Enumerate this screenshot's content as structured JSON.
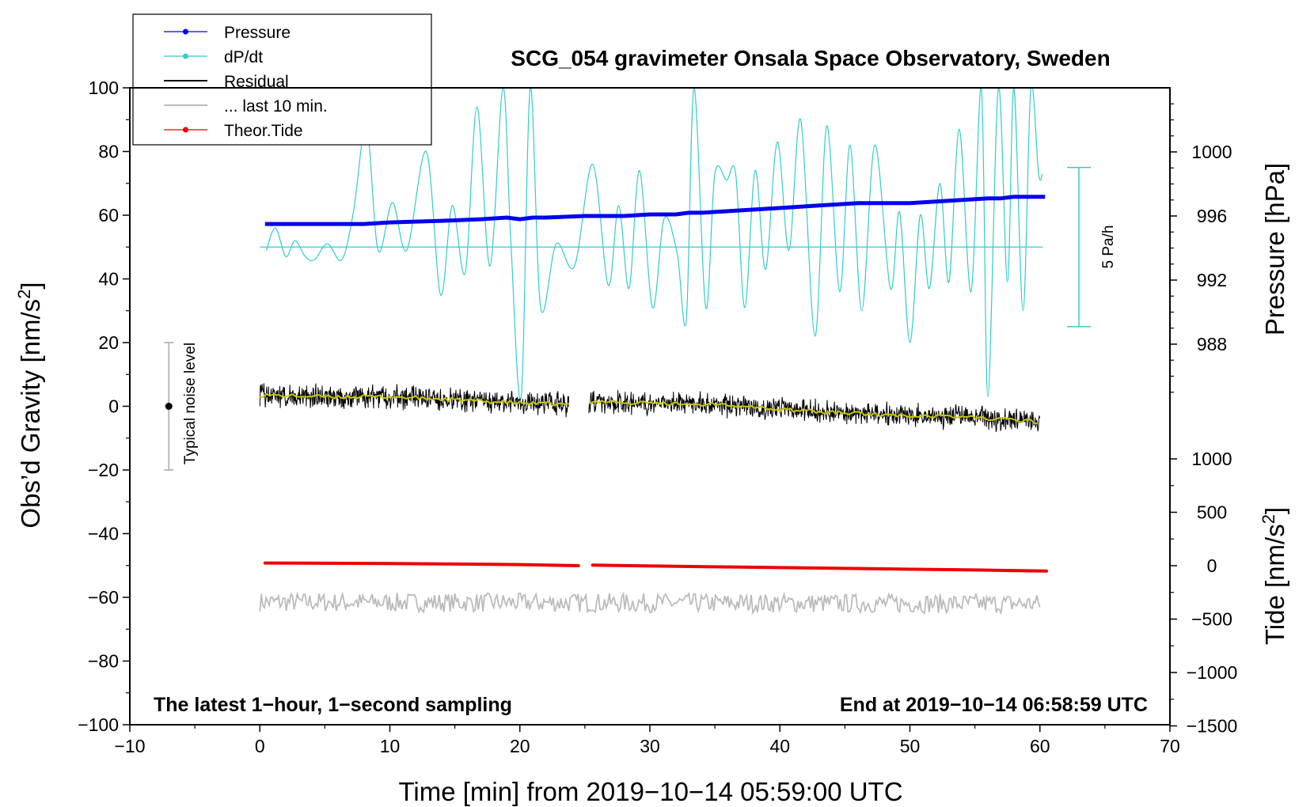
{
  "chart_data": {
    "type": "line",
    "title": "SCG_054 gravimeter Onsala Space Observatory, Sweden",
    "xlabel": "Time [min] from 2019−10−14 05:59:00 UTC",
    "ylabel_left": "Obs’d Gravity [nm/s",
    "ylabel_left_sup": "2",
    "ylabel_left_end": "]",
    "ylabel_right_top": "Pressure [hPa]",
    "ylabel_right_bottom": "Tide [nm/s",
    "ylabel_right_bottom_sup": "2",
    "ylabel_right_bottom_end": "]",
    "xlim": [
      -10,
      70
    ],
    "ylim": [
      -100,
      100
    ],
    "pressure_ylim": [
      984,
      1004
    ],
    "tide_ylim": [
      -1500,
      1500
    ],
    "x_ticks": [
      {
        "v": -10,
        "label": "−10"
      },
      {
        "v": 0,
        "label": "0"
      },
      {
        "v": 10,
        "label": "10"
      },
      {
        "v": 20,
        "label": "20"
      },
      {
        "v": 30,
        "label": "30"
      },
      {
        "v": 40,
        "label": "40"
      },
      {
        "v": 50,
        "label": "50"
      },
      {
        "v": 60,
        "label": "60"
      },
      {
        "v": 70,
        "label": "70"
      }
    ],
    "y_ticks_left": [
      {
        "v": 100,
        "label": "100"
      },
      {
        "v": 80,
        "label": "80"
      },
      {
        "v": 60,
        "label": "60"
      },
      {
        "v": 40,
        "label": "40"
      },
      {
        "v": 20,
        "label": "20"
      },
      {
        "v": 0,
        "label": "0"
      },
      {
        "v": -20,
        "label": "−20"
      },
      {
        "v": -40,
        "label": "−40"
      },
      {
        "v": -60,
        "label": "−60"
      },
      {
        "v": -80,
        "label": "−80"
      },
      {
        "v": -100,
        "label": "−100"
      }
    ],
    "y_ticks_pressure": [
      {
        "v": 1000,
        "label": "1000"
      },
      {
        "v": 996,
        "label": "996"
      },
      {
        "v": 992,
        "label": "992"
      },
      {
        "v": 988,
        "label": "988"
      }
    ],
    "y_ticks_tide": [
      {
        "v": 1000,
        "label": "1000"
      },
      {
        "v": 500,
        "label": "500"
      },
      {
        "v": 0,
        "label": "0"
      },
      {
        "v": -500,
        "label": "−500"
      },
      {
        "v": -1000,
        "label": "−1000"
      },
      {
        "v": -1500,
        "label": "−1500"
      }
    ],
    "legend": [
      {
        "label": "Pressure",
        "color": "#0000ee",
        "marker": true
      },
      {
        "label": "dP/dt",
        "color": "#33cccc",
        "marker": true
      },
      {
        "label": "Residual",
        "color": "#000000",
        "marker": false
      },
      {
        "label": "... last 10 min.",
        "color": "#bbbbbb",
        "marker": false
      },
      {
        "label": "Theor.Tide",
        "color": "#ee0000",
        "marker": true
      }
    ],
    "annotations": {
      "bottom_left": "The latest 1−hour, 1−second sampling",
      "bottom_right": "End at 2019−10−14 06:58:59 UTC",
      "noise_label": "Typical noise level",
      "noise_bar": {
        "x": -7,
        "center": 0,
        "half_range": 20
      },
      "rate_label": "5 Pa/h",
      "rate_bar": {
        "x": 63,
        "top": 75,
        "bottom": 25
      }
    },
    "series": [
      {
        "name": "Pressure",
        "color": "#0000ee",
        "axis": "pressure",
        "x": [
          0.4,
          4,
          8,
          10,
          14,
          17,
          19,
          20,
          21,
          22,
          25,
          28,
          30,
          32,
          33,
          34,
          36,
          38,
          40,
          42,
          44,
          46,
          48,
          50,
          52,
          54,
          56,
          57,
          58,
          59,
          60.4
        ],
        "values": [
          995.5,
          995.5,
          995.5,
          995.6,
          995.7,
          995.8,
          995.9,
          995.8,
          995.9,
          995.9,
          996.0,
          996.0,
          996.1,
          996.1,
          996.2,
          996.2,
          996.3,
          996.4,
          996.5,
          996.6,
          996.7,
          996.8,
          996.8,
          996.8,
          996.9,
          997.0,
          997.1,
          997.1,
          997.2,
          997.2,
          997.2
        ]
      },
      {
        "name": "dP/dt",
        "color": "#33cccc",
        "axis": "left",
        "baseline": 50,
        "x": [
          0.5,
          1.2,
          2.0,
          2.7,
          3.5,
          4.2,
          5.2,
          6.3,
          7.2,
          8.2,
          9.1,
          10.2,
          11.3,
          12.8,
          13.9,
          14.8,
          15.8,
          16.7,
          17.7,
          18.7,
          19.3,
          20.1,
          20.8,
          21.6,
          22.8,
          24.2,
          25.6,
          26.8,
          27.6,
          28.4,
          29.2,
          30.2,
          31.1,
          32.1,
          32.8,
          33.4,
          34.3,
          35.0,
          35.9,
          36.6,
          37.3,
          38.1,
          38.9,
          39.8,
          40.7,
          41.6,
          42.7,
          43.6,
          44.6,
          45.4,
          46.3,
          47.3,
          48.5,
          49.2,
          50.0,
          50.8,
          51.5,
          52.3,
          53.0,
          53.8,
          54.7,
          55.5,
          56.0,
          56.8,
          57.5,
          58.0,
          58.7,
          59.3,
          59.9,
          60.2
        ],
        "values": [
          49,
          56,
          47,
          52,
          47,
          46,
          51,
          46,
          61,
          88,
          49,
          64,
          49,
          80,
          35,
          63,
          42,
          94,
          44,
          100,
          52,
          3,
          100,
          31,
          51,
          44,
          76,
          38,
          63,
          37,
          74,
          31,
          59,
          48,
          27,
          100,
          31,
          73,
          71,
          73,
          31,
          74,
          43,
          83,
          49,
          90,
          22,
          88,
          36,
          82,
          30,
          82,
          37,
          61,
          20,
          60,
          37,
          70,
          39,
          87,
          36,
          100,
          3,
          100,
          39,
          100,
          30,
          100,
          73,
          73
        ]
      },
      {
        "name": "Residual",
        "color": "#000000",
        "axis": "left",
        "segments": [
          {
            "x": [
              0,
              5,
              10,
              15,
              20,
              23.8
            ],
            "values": [
              3.5,
              3,
              3,
              2,
              1,
              0.5
            ]
          },
          {
            "x": [
              25.3,
              30,
              35,
              40,
              45,
              50,
              55,
              60
            ],
            "values": [
              1.5,
              1,
              0.5,
              -1,
              -2,
              -3,
              -3.5,
              -5
            ]
          }
        ],
        "noise_amplitude": 3.5
      },
      {
        "name": "... last 10 min.",
        "color": "#bbbbbb",
        "axis": "left",
        "x": [
          0,
          60
        ],
        "values": [
          -61.5,
          -62
        ],
        "noise_amplitude": 3
      },
      {
        "name": "Theor.Tide",
        "color": "#ee0000",
        "axis": "tide",
        "segments": [
          {
            "x": [
              0.4,
              10,
              20,
              24.5
            ],
            "values": [
              25,
              20,
              10,
              0
            ]
          },
          {
            "x": [
              25.6,
              35,
              45,
              55,
              60.5
            ],
            "values": [
              5,
              -10,
              -25,
              -40,
              -50
            ]
          }
        ]
      }
    ]
  }
}
